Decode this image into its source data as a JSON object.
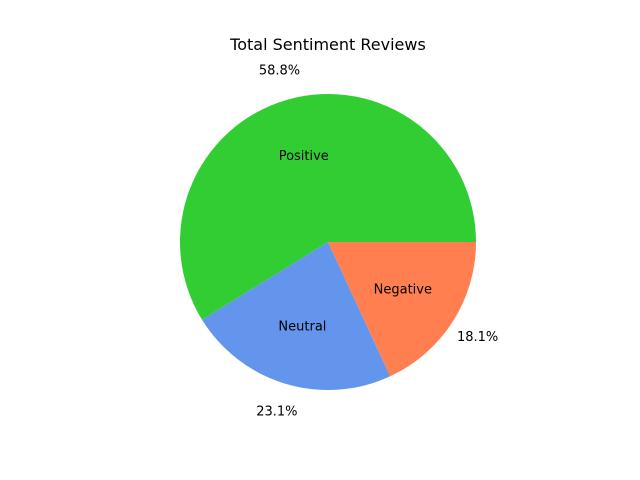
{
  "chart_data": {
    "type": "pie",
    "title": "Total Sentiment Reviews",
    "slices": [
      {
        "label": "Positive",
        "value": 58.8,
        "pct_label": "58.8%",
        "color": "#32cd32"
      },
      {
        "label": "Neutral",
        "value": 23.1,
        "pct_label": "23.1%",
        "color": "#6495ed"
      },
      {
        "label": "Negative",
        "value": 18.1,
        "pct_label": "18.1%",
        "color": "#ff7f50"
      }
    ],
    "legend": "none"
  }
}
